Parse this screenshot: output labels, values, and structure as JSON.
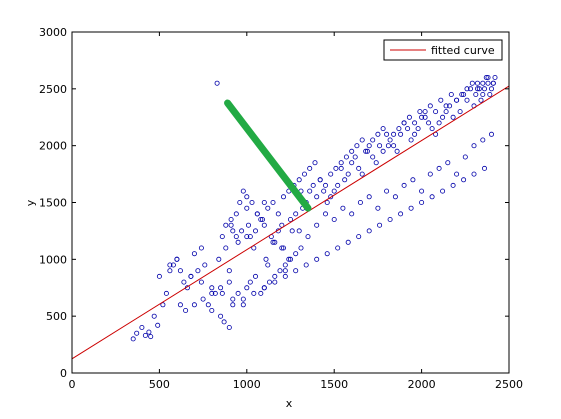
{
  "chart_data": {
    "type": "scatter",
    "title": "",
    "xlabel": "x",
    "ylabel": "y",
    "xlim": [
      0,
      2500
    ],
    "ylim": [
      0,
      3000
    ],
    "xticks": [
      "0",
      "500",
      "1000",
      "1500",
      "2000",
      "2500"
    ],
    "yticks": [
      "0",
      "500",
      "1000",
      "1500",
      "2000",
      "2500",
      "3000"
    ],
    "grid": false,
    "legend": {
      "position": "top-right",
      "entries": [
        "fitted curve"
      ]
    },
    "colors": {
      "points": "#0000aa",
      "fitted_curve": "#cc0000",
      "green_segment": "#22aa44",
      "axes": "#000000"
    },
    "fitted_curve": {
      "name": "fitted curve",
      "x": [
        0,
        2500
      ],
      "y": [
        125,
        2525
      ]
    },
    "green_segment": {
      "x": [
        890,
        1350
      ],
      "y": [
        2375,
        1450
      ]
    },
    "points": {
      "x": [
        350,
        370,
        400,
        420,
        440,
        450,
        470,
        490,
        500,
        520,
        540,
        560,
        580,
        600,
        620,
        640,
        660,
        680,
        700,
        720,
        740,
        760,
        780,
        800,
        820,
        840,
        860,
        880,
        900,
        910,
        920,
        940,
        960,
        980,
        1000,
        1010,
        1020,
        1040,
        1060,
        1080,
        1100,
        1110,
        1120,
        1140,
        1160,
        1180,
        1200,
        1210,
        1220,
        1240,
        1260,
        1280,
        1300,
        1310,
        1320,
        1340,
        1360,
        1380,
        1400,
        1420,
        1440,
        1460,
        1480,
        1500,
        1520,
        1540,
        1560,
        1580,
        1600,
        1620,
        1640,
        1660,
        1680,
        1700,
        1720,
        1740,
        1760,
        1780,
        1800,
        1820,
        1840,
        1860,
        1880,
        1900,
        1920,
        1940,
        1960,
        1980,
        2000,
        2020,
        2040,
        2060,
        2080,
        2100,
        2120,
        2140,
        2160,
        2180,
        2200,
        2220,
        2240,
        2260,
        2280,
        2300,
        2310,
        2320,
        2330,
        2340,
        2350,
        2360,
        2370,
        2380,
        2390,
        2400,
        2410,
        2420,
        830,
        850,
        870,
        900,
        920,
        950,
        980,
        1000,
        1020,
        1050,
        1080,
        1100,
        1130,
        1160,
        1190,
        1220,
        1250,
        1280,
        1310,
        600,
        650,
        700,
        750,
        800,
        850,
        900,
        950,
        1000,
        1050,
        1100,
        1150,
        1200,
        1250,
        1300,
        1350,
        1400,
        1450,
        1500,
        1550,
        1600,
        1650,
        1700,
        1750,
        1800,
        1850,
        1900,
        1950,
        2000,
        2050,
        2100,
        2150,
        2200,
        2250,
        2300,
        2350,
        2400,
        880,
        910,
        940,
        970,
        1000,
        1030,
        1060,
        1090,
        1120,
        1150,
        1180,
        1210,
        1240,
        1270,
        1300,
        1330,
        1360,
        1390,
        1420,
        1450,
        1480,
        1510,
        1540,
        1570,
        1600,
        1630,
        1660,
        1690,
        1720,
        1750,
        1780,
        1810,
        1840,
        1870,
        1900,
        1930,
        1960,
        1990,
        2020,
        2050,
        2080,
        2110,
        2140,
        2170,
        2200,
        2230,
        2260,
        2290,
        2320,
        2350,
        2380,
        2410,
        560,
        620,
        680,
        740,
        800,
        860,
        920,
        980,
        1040,
        1100,
        1160,
        1220,
        1280,
        1340,
        1400,
        1460,
        1520,
        1580,
        1640,
        1700,
        1760,
        1820,
        1880,
        1940,
        2000,
        2060,
        2120,
        2180,
        2240,
        2300,
        2360
      ],
      "y": [
        300,
        350,
        400,
        330,
        360,
        320,
        500,
        420,
        850,
        600,
        700,
        900,
        950,
        1000,
        600,
        800,
        750,
        850,
        1050,
        900,
        1100,
        950,
        600,
        550,
        700,
        1000,
        1200,
        1100,
        900,
        1300,
        1250,
        1400,
        1500,
        1600,
        1550,
        1300,
        1200,
        1100,
        1400,
        1350,
        1500,
        1000,
        950,
        1200,
        1150,
        1250,
        1300,
        1100,
        900,
        1000,
        1250,
        1400,
        1550,
        1600,
        1450,
        1500,
        1600,
        1650,
        1550,
        1700,
        1600,
        1500,
        1550,
        1600,
        1650,
        1800,
        1700,
        1750,
        1850,
        1900,
        1800,
        1750,
        1950,
        2000,
        1900,
        1850,
        2000,
        1950,
        2100,
        2050,
        2000,
        1950,
        2100,
        2200,
        2150,
        2050,
        2100,
        2150,
        2250,
        2300,
        2200,
        2150,
        2100,
        2200,
        2250,
        2300,
        2350,
        2250,
        2400,
        2300,
        2450,
        2400,
        2500,
        2350,
        2450,
        2550,
        2500,
        2400,
        2450,
        2500,
        2600,
        2550,
        2450,
        2500,
        2550,
        2600,
        2550,
        500,
        450,
        400,
        600,
        700,
        650,
        750,
        800,
        850,
        700,
        750,
        800,
        850,
        900,
        950,
        1000,
        1050,
        1100,
        1000,
        550,
        600,
        650,
        700,
        750,
        800,
        1150,
        1200,
        1250,
        1300,
        1150,
        1100,
        1350,
        1250,
        1200,
        1300,
        1400,
        1350,
        1450,
        1400,
        1500,
        1550,
        1450,
        1600,
        1550,
        1650,
        1700,
        1600,
        1750,
        1800,
        1850,
        1750,
        1900,
        2000,
        2050,
        2100,
        1300,
        1350,
        1200,
        1250,
        1450,
        1500,
        1400,
        1350,
        1450,
        1500,
        1400,
        1550,
        1600,
        1650,
        1700,
        1750,
        1800,
        1850,
        1700,
        1650,
        1750,
        1800,
        1850,
        1900,
        1950,
        2000,
        2050,
        1950,
        2050,
        2100,
        2150,
        2000,
        2100,
        2150,
        2200,
        2250,
        2200,
        2300,
        2250,
        2350,
        2300,
        2400,
        2350,
        2450,
        2400,
        2450,
        2500,
        2550,
        2500,
        2550,
        2600,
        2550,
        950,
        900,
        850,
        800,
        750,
        700,
        650,
        600,
        700,
        750,
        800,
        850,
        900,
        950,
        1000,
        1050,
        1100,
        1150,
        1200,
        1250,
        1300,
        1350,
        1400,
        1450,
        1500,
        1550,
        1600,
        1650,
        1700,
        1750,
        1800
      ]
    }
  }
}
